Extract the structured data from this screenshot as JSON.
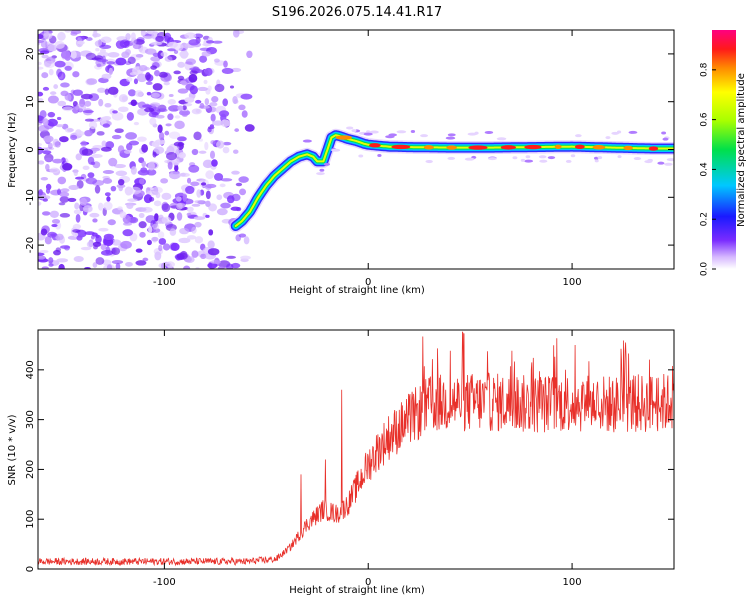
{
  "title": "S196.2026.075.14.41.R17",
  "colorbar": {
    "label": "Normalized spectral amplitude",
    "ticks": [
      "0.0",
      "0.2",
      "0.4",
      "0.6",
      "0.8"
    ],
    "tick_values": [
      0.0,
      0.2,
      0.4,
      0.6,
      0.8
    ],
    "range": [
      0.0,
      0.96
    ]
  },
  "chart_data": [
    {
      "type": "heatmap",
      "name": "spectrogram",
      "xlabel": "Height of straight line (km)",
      "ylabel": "Frequency (Hz)",
      "xlim": [
        -162,
        150
      ],
      "ylim": [
        -25,
        25
      ],
      "xticks": [
        -100,
        0,
        100
      ],
      "xtick_labels": [
        "-100",
        "0",
        "100"
      ],
      "yticks": [
        -20,
        -10,
        0,
        10,
        20
      ],
      "ytick_labels": [
        "-20",
        "-10",
        "0",
        "10",
        "20"
      ],
      "ridge": {
        "x": [
          -65,
          -62,
          -58,
          -54,
          -50,
          -46,
          -42,
          -38,
          -34,
          -30,
          -27,
          -25,
          -22,
          -20,
          -18,
          -16,
          -14,
          -12,
          -10,
          -8,
          -6,
          -4,
          -2,
          0,
          5,
          10,
          20,
          40,
          60,
          80,
          100,
          120,
          140,
          150
        ],
        "y": [
          -16,
          -15,
          -13,
          -10,
          -7.5,
          -5.5,
          -4,
          -2.5,
          -1.5,
          -1,
          -1.5,
          -2.5,
          -2.5,
          0,
          2.5,
          3,
          2.8,
          2.5,
          2.2,
          2,
          1.8,
          1.5,
          1.2,
          1.0,
          0.8,
          0.6,
          0.5,
          0.4,
          0.4,
          0.5,
          0.6,
          0.4,
          0.2,
          0.2
        ]
      },
      "noise_region_x": [
        -162,
        -55
      ]
    },
    {
      "type": "line",
      "name": "snr",
      "xlabel": "Height of straight line (km)",
      "ylabel": "SNR (10 * v/v)",
      "xlim": [
        -162,
        150
      ],
      "ylim": [
        0,
        480
      ],
      "xticks": [
        -100,
        0,
        100
      ],
      "xtick_labels": [
        "-100",
        "0",
        "100"
      ],
      "yticks": [
        0,
        100,
        200,
        300,
        400
      ],
      "ytick_labels": [
        "0",
        "100",
        "200",
        "300",
        "400"
      ],
      "series": [
        {
          "name": "SNR",
          "color": "#e8302a",
          "trend_x": [
            -162,
            -100,
            -60,
            -45,
            -38,
            -30,
            -22,
            -15,
            -10,
            -5,
            0,
            5,
            10,
            20,
            30,
            40,
            60,
            80,
            100,
            120,
            150
          ],
          "trend_y": [
            15,
            15,
            15,
            20,
            45,
            90,
            120,
            110,
            130,
            170,
            210,
            240,
            265,
            300,
            330,
            335,
            335,
            330,
            335,
            330,
            335
          ],
          "spikes_x": [
            -33,
            -21,
            -13
          ],
          "spikes_y": [
            190,
            220,
            360
          ]
        }
      ]
    }
  ]
}
